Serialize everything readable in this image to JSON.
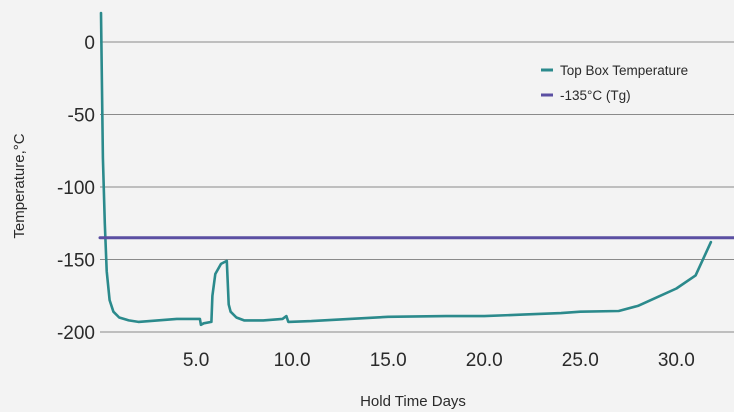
{
  "chart_data": {
    "type": "line",
    "xlabel": "Hold Time Days",
    "ylabel": "Temperature,°C",
    "xlim": [
      0,
      33.0
    ],
    "ylim": [
      -200,
      0
    ],
    "x_ticks": [
      5.0,
      10.0,
      15.0,
      20.0,
      25.0,
      30.0
    ],
    "x_tick_labels": [
      "5.0",
      "10.0",
      "15.0",
      "20.0",
      "25.0",
      "30.0"
    ],
    "y_ticks": [
      0,
      -50,
      -100,
      -150,
      -200
    ],
    "y_tick_labels": [
      "0",
      "-50",
      "-100",
      "-150",
      "-200"
    ],
    "grid": "horizontal",
    "legend_position": "top-right",
    "series": [
      {
        "name": "Top Box Temperature",
        "color": "#2b8a8c",
        "x": [
          0.05,
          0.15,
          0.25,
          0.35,
          0.5,
          0.7,
          1.0,
          1.5,
          2.0,
          3.0,
          4.0,
          5.2,
          5.25,
          5.4,
          5.8,
          5.85,
          6.0,
          6.3,
          6.6,
          6.7,
          6.8,
          7.1,
          7.5,
          8.5,
          9.5,
          9.7,
          9.8,
          11.0,
          13.0,
          15.0,
          18.0,
          20.0,
          22.0,
          24.0,
          25.0,
          27.0,
          28.0,
          29.0,
          30.0,
          31.0,
          31.8
        ],
        "y": [
          20,
          -80,
          -125,
          -158,
          -178,
          -186,
          -190,
          -192,
          -193,
          -192,
          -191,
          -191,
          -195,
          -194,
          -193,
          -175,
          -160,
          -153,
          -151,
          -181,
          -186,
          -190,
          -192,
          -192,
          -191,
          -189,
          -193,
          -192.5,
          -191,
          -189.5,
          -189,
          -189,
          -188,
          -187,
          -186,
          -185.5,
          -182,
          -176,
          -170,
          -161,
          -138
        ]
      },
      {
        "name": "-135°C (Tg)",
        "color": "#5b4fa2",
        "x": [
          0,
          33.0
        ],
        "y": [
          -135,
          -135
        ]
      }
    ]
  }
}
